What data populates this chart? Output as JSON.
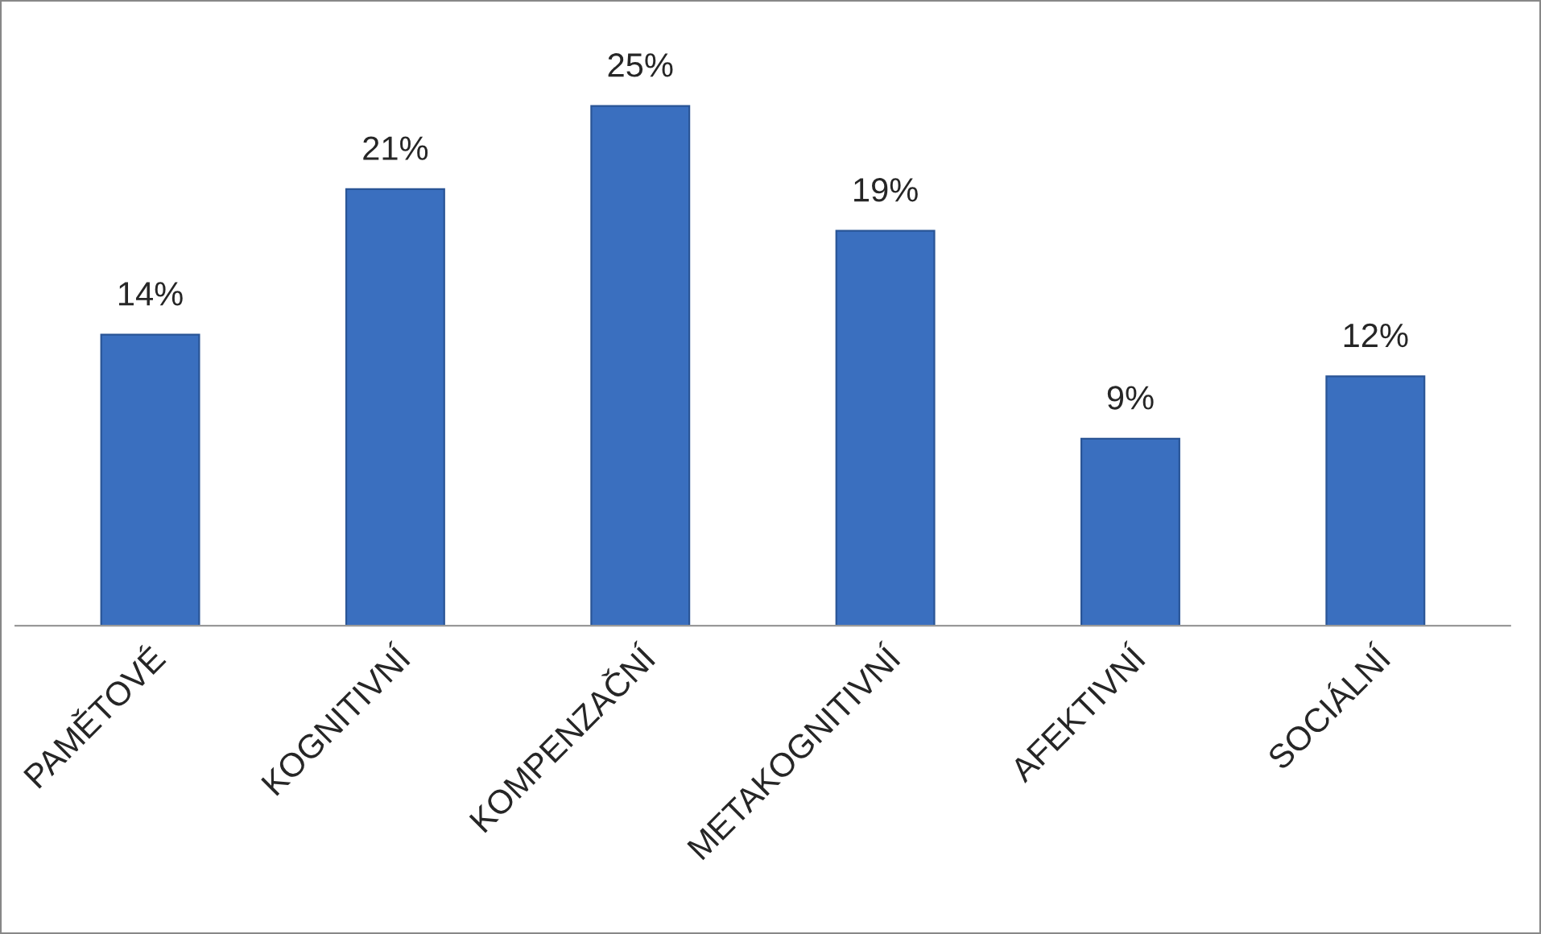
{
  "chart_data": {
    "type": "bar",
    "categories": [
      "PAMĚTOVÉ",
      "KOGNITIVNÍ",
      "KOMPENZAČNÍ",
      "METAKOGNITIVNÍ",
      "AFEKTIVNÍ",
      "SOCIÁLNÍ"
    ],
    "values": [
      14,
      21,
      25,
      19,
      9,
      12
    ],
    "value_labels": [
      "14%",
      "21%",
      "25%",
      "19%",
      "9%",
      "12%"
    ],
    "color": "#3a6fbf"
  }
}
